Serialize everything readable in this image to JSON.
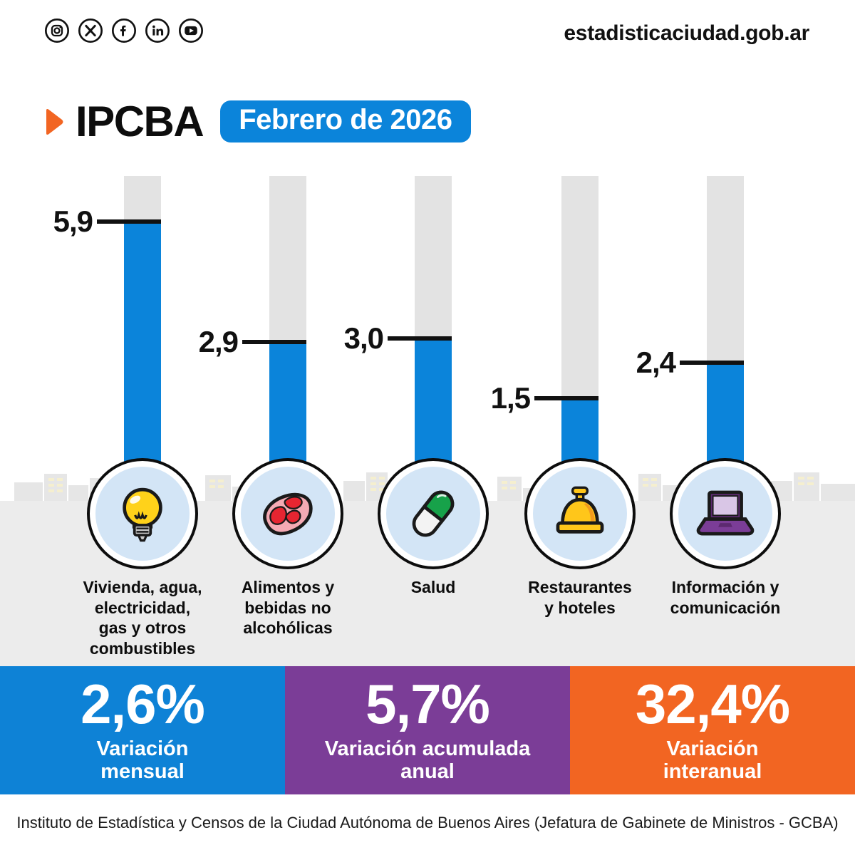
{
  "header": {
    "social": [
      {
        "name": "instagram"
      },
      {
        "name": "x-twitter"
      },
      {
        "name": "facebook"
      },
      {
        "name": "linkedin"
      },
      {
        "name": "youtube"
      }
    ],
    "website": "estadisticaciudad.gob.ar"
  },
  "title": {
    "logo": "IPCBA",
    "badge": "Febrero de 2026"
  },
  "chart_data": {
    "type": "bar",
    "title": "IPCBA Febrero de 2026 - variación mensual por división",
    "categories": [
      [
        "Vivienda, agua,",
        "electricidad,",
        "gas y otros",
        "combustibles"
      ],
      [
        "Alimentos y",
        "bebidas no",
        "alcohólicas"
      ],
      [
        "Salud"
      ],
      [
        "Restaurantes",
        "y hoteles"
      ],
      [
        "Información y",
        "comunicación"
      ]
    ],
    "values": [
      5.9,
      2.9,
      3.0,
      1.5,
      2.4
    ],
    "value_labels": [
      "5,9",
      "2,9",
      "3,0",
      "1,5",
      "2,4"
    ],
    "icons": [
      "light-bulb",
      "meat",
      "pill",
      "service-bell",
      "laptop"
    ],
    "ylim": [
      0,
      7
    ],
    "grid": false,
    "legend": false,
    "bar_color": "#0b84da",
    "track_color": "#e3e3e3"
  },
  "summary": [
    {
      "value": "2,6%",
      "label_lines": [
        "Variación",
        "mensual"
      ],
      "color": "#0e82d6"
    },
    {
      "value": "5,7%",
      "label_lines": [
        "Variación acumulada",
        "anual"
      ],
      "color": "#7b3d97"
    },
    {
      "value": "32,4%",
      "label_lines": [
        "Variación",
        "interanual"
      ],
      "color": "#f26522"
    }
  ],
  "footer": "Instituto de Estadística y Censos de la Ciudad Autónoma de Buenos Aires (Jefatura de Gabinete de Ministros - GCBA)"
}
